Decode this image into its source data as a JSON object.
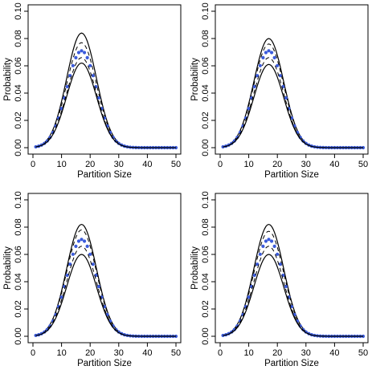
{
  "chart_data": [
    {
      "type": "line",
      "xlabel": "Partition Size",
      "ylabel": "Probability",
      "xlim": [
        0,
        50
      ],
      "ylim": [
        0,
        0.1
      ],
      "xticks": [
        0,
        10,
        20,
        30,
        40,
        50
      ],
      "yticks": [
        "0.00",
        "0.02",
        "0.04",
        "0.06",
        "0.08",
        "0.10"
      ],
      "peak_x": 17,
      "spread": 5.2,
      "series": [
        {
          "style": "solid-black",
          "peak": 0.084
        },
        {
          "style": "dashed-black",
          "peak": 0.077
        },
        {
          "style": "blue-points",
          "peak": 0.071
        },
        {
          "style": "dashed-black",
          "peak": 0.066
        },
        {
          "style": "solid-black",
          "peak": 0.062
        }
      ]
    },
    {
      "type": "line",
      "xlabel": "Partition Size",
      "ylabel": "Probability",
      "xlim": [
        0,
        50
      ],
      "ylim": [
        0,
        0.1
      ],
      "xticks": [
        0,
        10,
        20,
        30,
        40,
        50
      ],
      "yticks": [
        "0.00",
        "0.02",
        "0.04",
        "0.06",
        "0.08",
        "0.10"
      ],
      "peak_x": 17,
      "spread": 5.2,
      "series": [
        {
          "style": "solid-black",
          "peak": 0.08
        },
        {
          "style": "dashed-black",
          "peak": 0.076
        },
        {
          "style": "blue-points",
          "peak": 0.071
        },
        {
          "style": "dashed-black",
          "peak": 0.066
        },
        {
          "style": "solid-black",
          "peak": 0.061
        }
      ]
    },
    {
      "type": "line",
      "xlabel": "Partition Size",
      "ylabel": "Probability",
      "xlim": [
        0,
        50
      ],
      "ylim": [
        0,
        0.1
      ],
      "xticks": [
        0,
        10,
        20,
        30,
        40,
        50
      ],
      "yticks": [
        "0.00",
        "0.02",
        "0.04",
        "0.06",
        "0.08",
        "0.10"
      ],
      "peak_x": 17,
      "spread": 5.2,
      "series": [
        {
          "style": "solid-black",
          "peak": 0.082
        },
        {
          "style": "dashed-black",
          "peak": 0.078
        },
        {
          "style": "blue-points",
          "peak": 0.071
        },
        {
          "style": "dashed-black",
          "peak": 0.066
        },
        {
          "style": "solid-black",
          "peak": 0.06
        }
      ]
    },
    {
      "type": "line",
      "xlabel": "Partition Size",
      "ylabel": "Probability",
      "xlim": [
        0,
        50
      ],
      "ylim": [
        0,
        0.1
      ],
      "xticks": [
        0,
        10,
        20,
        30,
        40,
        50
      ],
      "yticks": [
        "0.00",
        "0.02",
        "0.04",
        "0.06",
        "0.08",
        "0.10"
      ],
      "peak_x": 17,
      "spread": 5.2,
      "series": [
        {
          "style": "solid-black",
          "peak": 0.082
        },
        {
          "style": "dashed-black",
          "peak": 0.077
        },
        {
          "style": "blue-points",
          "peak": 0.071
        },
        {
          "style": "dashed-black",
          "peak": 0.066
        },
        {
          "style": "solid-black",
          "peak": 0.06
        }
      ]
    }
  ],
  "colors": {
    "points": "#3b5bdb",
    "lines": "#000000"
  }
}
